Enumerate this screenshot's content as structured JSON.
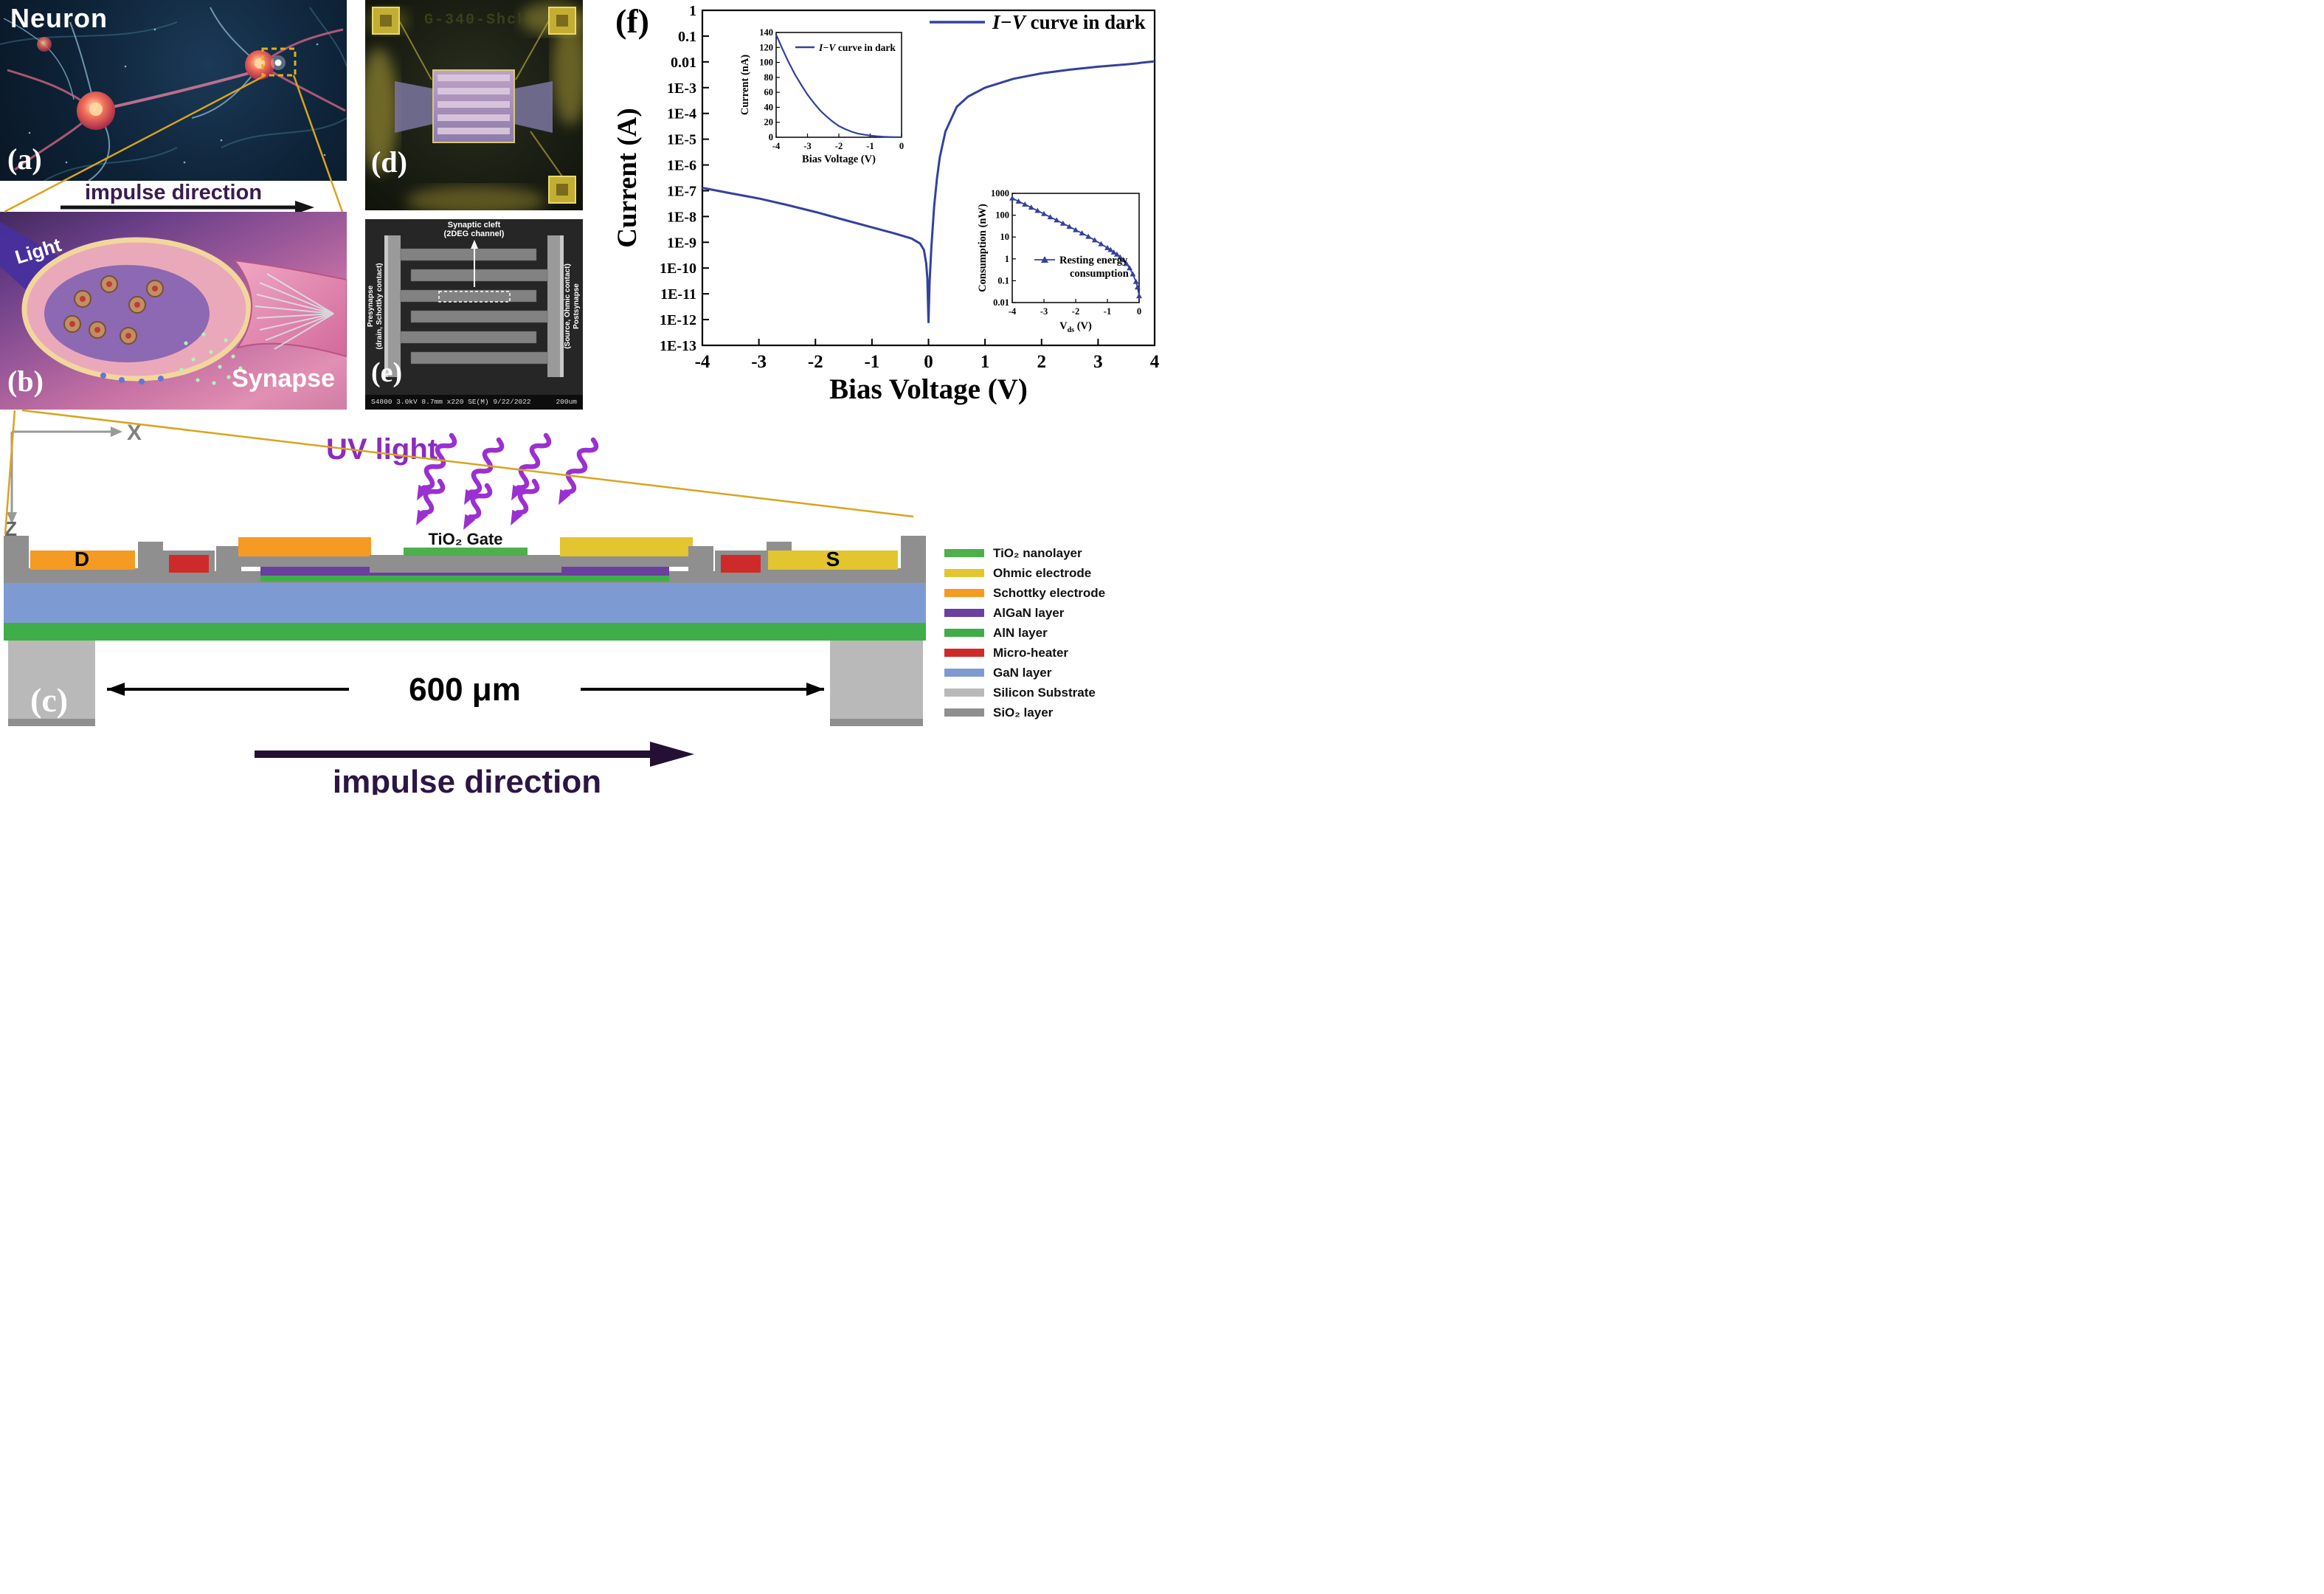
{
  "panel_a": {
    "label": "(a)",
    "title": "Neuron"
  },
  "impulse_top": {
    "text": "impulse direction"
  },
  "panel_b": {
    "label": "(b)",
    "title": "Synapse",
    "light": "Light"
  },
  "panel_c": {
    "label": "(c)",
    "uv_light": "UV light",
    "axis_x": "X",
    "axis_z": "Z",
    "gate_label": "TiO₂ Gate",
    "drain_label": "D",
    "source_label": "S",
    "width_label": "600 μm",
    "impulse": "impulse direction",
    "legend": [
      {
        "label": "TiO₂ nanolayer",
        "color": "#4db04a"
      },
      {
        "label": "Ohmic electrode",
        "color": "#e2c52f"
      },
      {
        "label": "Schottky electrode",
        "color": "#f59a23"
      },
      {
        "label": "AlGaN layer",
        "color": "#6b3fa0"
      },
      {
        "label": "AlN layer",
        "color": "#3fae49"
      },
      {
        "label": "Micro-heater",
        "color": "#cf2a2a"
      },
      {
        "label": "GaN layer",
        "color": "#7d9bd2"
      },
      {
        "label": "Silicon Substrate",
        "color": "#b9b9b9"
      },
      {
        "label": "SiO₂ layer",
        "color": "#8f8f8f"
      }
    ]
  },
  "panel_d": {
    "label": "(d)",
    "chip_text": "G-340-Shck"
  },
  "panel_e": {
    "label": "(e)",
    "top_label_line1": "Synaptic cleft",
    "top_label_line2": "(2DEG channel)",
    "left_label_line1": "Presynapse",
    "left_label_line2": "(drain, Schottky contact)",
    "right_label_line1": "(Source, Ohmic contact)",
    "right_label_line2": "Postsynapse",
    "status_bar": "S4800 3.0kV 8.7mm x220 SE(M) 9/22/2022 14:21",
    "scale_label": "200um"
  },
  "panel_f": {
    "label": "(f)"
  },
  "chart_data": [
    {
      "id": "main-iv",
      "type": "line",
      "title": "",
      "xlabel": "Bias Voltage (V)",
      "ylabel": "Current (A)",
      "xlim": [
        -4,
        4
      ],
      "xticks": [
        -4,
        -3,
        -2,
        -1,
        0,
        1,
        2,
        3,
        4
      ],
      "yscale": "log",
      "ylim_log": [
        -13,
        0
      ],
      "ytick_labels": [
        "1",
        "0.1",
        "0.01",
        "1E-3",
        "1E-4",
        "1E-5",
        "1E-6",
        "1E-7",
        "1E-8",
        "1E-9",
        "1E-10",
        "1E-11",
        "1E-12",
        "1E-13"
      ],
      "legend_italic": "I−V",
      "legend_rest": " curve in dark",
      "line_color": "#33419e",
      "grid": false,
      "legend_position": "top-right",
      "series": [
        {
          "name": "I-V curve in dark",
          "x": [
            -4,
            -3.5,
            -3,
            -2.5,
            -2,
            -1.5,
            -1,
            -0.6,
            -0.3,
            -0.15,
            -0.08,
            -0.04,
            -0.02,
            0,
            0.02,
            0.05,
            0.1,
            0.15,
            0.2,
            0.3,
            0.5,
            0.7,
            1,
            1.5,
            2,
            2.5,
            3,
            3.5,
            3.7,
            3.75,
            4
          ],
          "y": [
            1.3e-07,
            8e-08,
            5e-08,
            2.8e-08,
            1.5e-08,
            7.5e-09,
            3.8e-09,
            2.2e-09,
            1.4e-09,
            9e-10,
            5e-10,
            1.5e-10,
            4e-11,
            8e-13,
            3e-11,
            6e-10,
            2.5e-08,
            3e-07,
            2e-06,
            2e-05,
            0.00018,
            0.00045,
            0.001,
            0.0022,
            0.0036,
            0.005,
            0.0065,
            0.008,
            0.0088,
            0.0092,
            0.0105
          ]
        }
      ]
    },
    {
      "id": "inset-dark",
      "type": "line",
      "title_italic": "I−V",
      "title_rest": " curve in dark",
      "xlabel": "Bias Voltage (V)",
      "ylabel": "Current (nA)",
      "xlim": [
        -4,
        0
      ],
      "xticks": [
        -4,
        -3,
        -2,
        -1,
        0
      ],
      "ylim": [
        0,
        140
      ],
      "yticks": [
        0,
        20,
        40,
        60,
        80,
        100,
        120,
        140
      ],
      "line_color": "#33419e",
      "series": [
        {
          "name": "I-V curve in dark (nA)",
          "x": [
            -4,
            -3.8,
            -3.6,
            -3.4,
            -3.2,
            -3,
            -2.8,
            -2.6,
            -2.4,
            -2.2,
            -2,
            -1.8,
            -1.6,
            -1.4,
            -1.2,
            -1,
            -0.8,
            -0.6,
            -0.4,
            -0.2,
            0
          ],
          "y": [
            137,
            118,
            100,
            84,
            70,
            57,
            46,
            36,
            28,
            21,
            15,
            11,
            7.5,
            5,
            3.5,
            2.2,
            1.4,
            0.8,
            0.4,
            0.2,
            0.1
          ]
        }
      ]
    },
    {
      "id": "inset-energy",
      "type": "line-markers",
      "legend_line1": "Resting energy",
      "legend_line2": "consumption",
      "xlabel_base": "V",
      "xlabel_sub": "ds",
      "xlabel_rest": " (V)",
      "ylabel": "Consumption (nW)",
      "xlim": [
        -4,
        0
      ],
      "xticks": [
        -4,
        -3,
        -2,
        -1,
        0
      ],
      "yscale": "log",
      "ylim_log": [
        -2,
        3
      ],
      "ytick_labels": [
        "1000",
        "100",
        "10",
        "1",
        "0.1",
        "0.01"
      ],
      "marker": "triangle",
      "line_color": "#33419e",
      "series": [
        {
          "name": "Resting energy consumption",
          "x": [
            -4,
            -3.8,
            -3.6,
            -3.4,
            -3.2,
            -3,
            -2.8,
            -2.6,
            -2.4,
            -2.2,
            -2,
            -1.8,
            -1.6,
            -1.4,
            -1.2,
            -1,
            -0.9,
            -0.8,
            -0.7,
            -0.6,
            -0.5,
            -0.4,
            -0.3,
            -0.2,
            -0.1,
            -0.05,
            0
          ],
          "y": [
            600,
            430,
            310,
            225,
            160,
            115,
            82,
            59,
            42,
            30,
            21,
            15,
            10.5,
            7.2,
            4.8,
            3.2,
            2.6,
            2.0,
            1.6,
            1.2,
            0.9,
            0.6,
            0.38,
            0.2,
            0.09,
            0.05,
            0.02
          ]
        }
      ]
    }
  ]
}
